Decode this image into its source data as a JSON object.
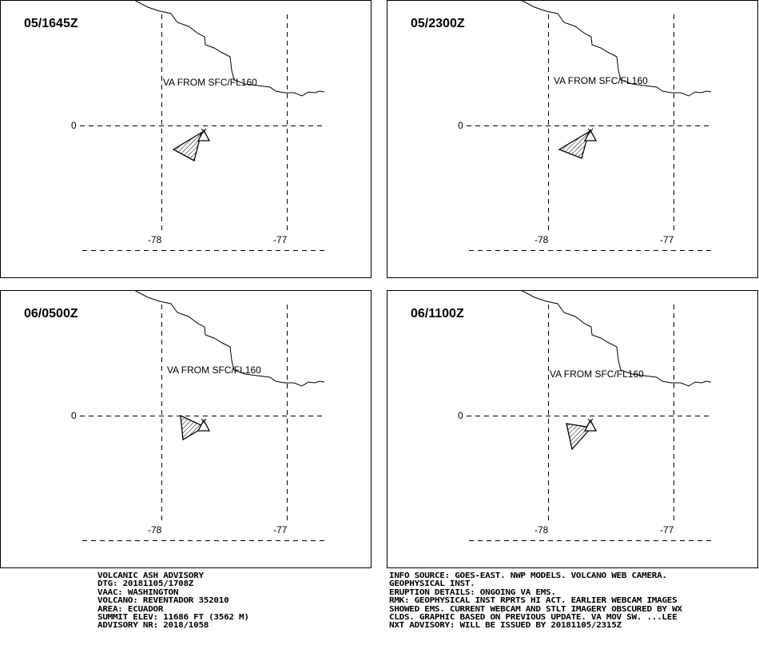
{
  "panels": [
    {
      "time": "05/1645Z",
      "label": "VA FROM SFC/FL160",
      "lat": "0",
      "lon_left": "-78",
      "lon_right": "-77"
    },
    {
      "time": "05/2300Z",
      "label": "VA FROM SFC/FL160",
      "lat": "0",
      "lon_left": "-78",
      "lon_right": "-77"
    },
    {
      "time": "06/0500Z",
      "label": "VA FROM SFC/FL160",
      "lat": "0",
      "lon_left": "-78",
      "lon_right": "-77"
    },
    {
      "time": "06/1100Z",
      "label": "VA FROM SFC/FL160",
      "lat": "0",
      "lon_left": "-78",
      "lon_right": "-77"
    }
  ],
  "advisory_left": [
    "VOLCANIC ASH ADVISORY",
    "DTG: 20181105/1708Z",
    "VAAC: WASHINGTON",
    "VOLCANO: REVENTADOR 352010",
    "AREA: ECUADOR",
    "SUMMIT ELEV: 11686 FT (3562 M)",
    "ADVISORY NR: 2018/1058"
  ],
  "advisory_right": [
    "INFO SOURCE: GOES-EAST. NWP MODELS. VOLCANO WEB CAMERA.",
    "GEOPHYSICAL INST.",
    "ERUPTION DETAILS: ONGOING VA EMS.",
    "RMK: GEOPHYSICAL INST RPRTS HI ACT. EARLIER WEBCAM IMAGES",
    "SHOWED EMS. CURRENT WEBCAM AND STLT IMAGERY OBSCURED BY WX",
    "CLDS. GRAPHIC BASED ON PREVIOUS UPDATE. VA MOV SW. ...LEE",
    "NXT ADVISORY: WILL BE ISSUED BY 20181105/2315Z"
  ]
}
